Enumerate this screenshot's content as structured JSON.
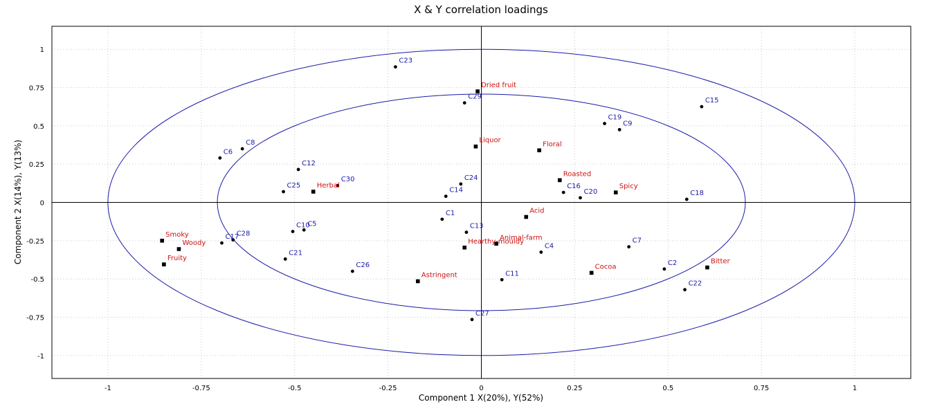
{
  "chart_data": {
    "type": "scatter",
    "title": "X & Y correlation loadings",
    "xlabel": "Component 1 X(20%), Y(52%)",
    "ylabel": "Component 2 X(14%), Y(13%)",
    "xlim": [
      -1.15,
      1.15
    ],
    "ylim": [
      -1.15,
      1.15
    ],
    "xticks": [
      -1,
      -0.75,
      -0.5,
      -0.25,
      0,
      0.25,
      0.5,
      0.75,
      1
    ],
    "yticks": [
      -1,
      -0.75,
      -0.5,
      -0.25,
      0,
      0.25,
      0.5,
      0.75,
      1
    ],
    "xtick_labels": [
      "-1",
      "-0.75",
      "-0.5",
      "-0.25",
      "0",
      "0.25",
      "0.5",
      "0.75",
      "1"
    ],
    "ytick_labels": [
      "-1",
      "-0.75",
      "-0.5",
      "-0.25",
      "0",
      "0.25",
      "0.5",
      "0.75",
      "1"
    ],
    "grid": true,
    "circles": [
      {
        "radius_x": 1.0,
        "radius_y": 1.0
      },
      {
        "radius_x": 0.707,
        "radius_y": 0.707
      }
    ],
    "colors": {
      "x_series": "#1a1aa8",
      "y_series": "#cc1111",
      "circle": "#1a1aa8",
      "grid": "#c8c8c8"
    },
    "series": [
      {
        "marker": "circle",
        "points": [
          {
            "label": "C23",
            "x": -0.23,
            "y": 0.885
          },
          {
            "label": "C29",
            "x": -0.045,
            "y": 0.65
          },
          {
            "label": "C15",
            "x": 0.59,
            "y": 0.625
          },
          {
            "label": "C19",
            "x": 0.33,
            "y": 0.515
          },
          {
            "label": "C9",
            "x": 0.37,
            "y": 0.475
          },
          {
            "label": "C8",
            "x": -0.64,
            "y": 0.35
          },
          {
            "label": "C6",
            "x": -0.7,
            "y": 0.29
          },
          {
            "label": "C12",
            "x": -0.49,
            "y": 0.215
          },
          {
            "label": "C25",
            "x": -0.53,
            "y": 0.07
          },
          {
            "label": "C30",
            "x": -0.385,
            "y": 0.11
          },
          {
            "label": "C24",
            "x": -0.055,
            "y": 0.12
          },
          {
            "label": "C14",
            "x": -0.095,
            "y": 0.04
          },
          {
            "label": "C16",
            "x": 0.22,
            "y": 0.065
          },
          {
            "label": "C20",
            "x": 0.265,
            "y": 0.03
          },
          {
            "label": "C18",
            "x": 0.55,
            "y": 0.02
          },
          {
            "label": "C1",
            "x": -0.105,
            "y": -0.11
          },
          {
            "label": "C10",
            "x": -0.505,
            "y": -0.19
          },
          {
            "label": "C5",
            "x": -0.475,
            "y": -0.18
          },
          {
            "label": "C13",
            "x": -0.04,
            "y": -0.195
          },
          {
            "label": "C28",
            "x": -0.665,
            "y": -0.245
          },
          {
            "label": "C17",
            "x": -0.695,
            "y": -0.265
          },
          {
            "label": "C7",
            "x": 0.395,
            "y": -0.29
          },
          {
            "label": "C4",
            "x": 0.16,
            "y": -0.325
          },
          {
            "label": "C21",
            "x": -0.525,
            "y": -0.37
          },
          {
            "label": "C26",
            "x": -0.345,
            "y": -0.45
          },
          {
            "label": "C2",
            "x": 0.49,
            "y": -0.435
          },
          {
            "label": "C11",
            "x": 0.055,
            "y": -0.505
          },
          {
            "label": "C22",
            "x": 0.545,
            "y": -0.57
          },
          {
            "label": "C27",
            "x": -0.025,
            "y": -0.765
          }
        ]
      },
      {
        "marker": "square",
        "points": [
          {
            "label": "Dried fruit",
            "x": -0.01,
            "y": 0.725
          },
          {
            "label": "Liquor",
            "x": -0.015,
            "y": 0.365
          },
          {
            "label": "Floral",
            "x": 0.155,
            "y": 0.34
          },
          {
            "label": "Roasted",
            "x": 0.21,
            "y": 0.145
          },
          {
            "label": "Spicy",
            "x": 0.36,
            "y": 0.065
          },
          {
            "label": "Herbal",
            "x": -0.45,
            "y": 0.07
          },
          {
            "label": "Acid",
            "x": 0.12,
            "y": -0.095
          },
          {
            "label": "Animal-farm",
            "x": 0.04,
            "y": -0.27
          },
          {
            "label": "Hearthy-mouldy",
            "x": -0.045,
            "y": -0.295
          },
          {
            "label": "Smoky",
            "x": -0.855,
            "y": -0.25
          },
          {
            "label": "Woody",
            "x": -0.81,
            "y": -0.305
          },
          {
            "label": "Fruity",
            "x": -0.85,
            "y": -0.405
          },
          {
            "label": "Astringent",
            "x": -0.17,
            "y": -0.515
          },
          {
            "label": "Cocoa",
            "x": 0.295,
            "y": -0.46
          },
          {
            "label": "Bitter",
            "x": 0.605,
            "y": -0.425
          }
        ]
      }
    ]
  }
}
